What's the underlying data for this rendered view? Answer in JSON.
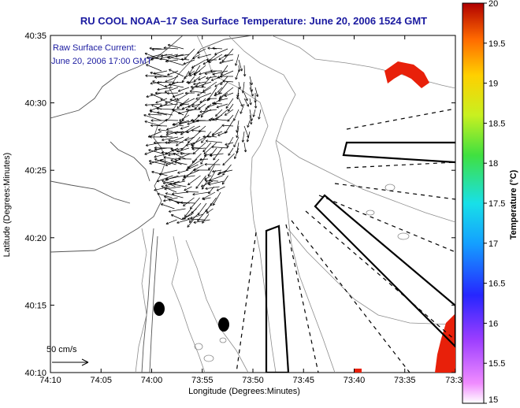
{
  "title": "RU COOL  NOAA–17  Sea Surface Temperature:  June 20, 2006 1524 GMT",
  "current_label": {
    "line1": "Raw Surface Current:",
    "line2": "June 20, 2006 17:00 GMT"
  },
  "scale_label": "50 cm/s",
  "axes": {
    "xlabel": "Longitude (Degrees:Minutes)",
    "ylabel": "Latitude (Degrees:Minutes)",
    "x_ticks": [
      "74:10",
      "74:05",
      "74:00",
      "73:55",
      "73:50",
      "73:45",
      "73:40",
      "73:35",
      "73:3"
    ],
    "y_ticks": [
      "40:35",
      "40:30",
      "40:25",
      "40:20",
      "40:15",
      "40:10"
    ]
  },
  "colorbar": {
    "label": "Temperature (°C)",
    "ticks": [
      "20",
      "19.5",
      "19",
      "18.5",
      "18",
      "17.5",
      "17",
      "16.5",
      "16",
      "15.5",
      "15"
    ],
    "range": [
      15,
      20
    ]
  },
  "colors": {
    "title": "#1a1aa0",
    "land_outline": "#555555",
    "bathymetry": "#8c8c8c",
    "vectors": "#000000",
    "sst_warm": "#e8200a"
  }
}
